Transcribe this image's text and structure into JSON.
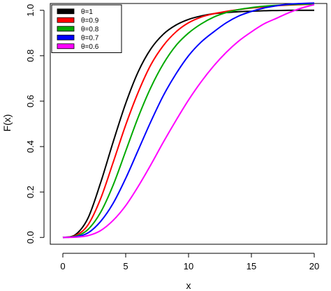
{
  "chart_data": {
    "type": "line",
    "title": "",
    "xlabel": "x",
    "ylabel": "F(x)",
    "xlim": [
      -1,
      21
    ],
    "ylim": [
      -0.03,
      1.03
    ],
    "xticks": [
      "0",
      "5",
      "10",
      "15",
      "20"
    ],
    "yticks": [
      "0.0",
      "0.2",
      "0.4",
      "0.6",
      "0.8",
      "1.0"
    ],
    "grid": false,
    "legend_position": "top-left",
    "x": [
      0,
      1,
      2,
      3,
      4,
      5,
      6,
      7,
      8,
      9,
      10,
      11,
      12,
      13,
      14,
      15,
      16,
      17,
      18,
      19,
      20
    ],
    "series": [
      {
        "name": "θ=1",
        "color": "#000000",
        "values": [
          0.0,
          0.012,
          0.085,
          0.24,
          0.42,
          0.59,
          0.73,
          0.83,
          0.895,
          0.935,
          0.96,
          0.975,
          0.985,
          0.99,
          0.994,
          0.996,
          0.998,
          0.999,
          1.0,
          1.0,
          1.0
        ]
      },
      {
        "name": "θ=0.9",
        "color": "#ff0000",
        "values": [
          0.0,
          0.008,
          0.055,
          0.17,
          0.33,
          0.495,
          0.64,
          0.76,
          0.845,
          0.905,
          0.945,
          0.97,
          0.985,
          0.995,
          1.003,
          1.01,
          1.015,
          1.02,
          1.023,
          1.025,
          1.027
        ]
      },
      {
        "name": "θ=0.8",
        "color": "#00aa00",
        "values": [
          0.0,
          0.005,
          0.035,
          0.11,
          0.23,
          0.38,
          0.53,
          0.66,
          0.765,
          0.845,
          0.9,
          0.94,
          0.97,
          0.99,
          1.003,
          1.012,
          1.018,
          1.022,
          1.025,
          1.027,
          1.028
        ]
      },
      {
        "name": "θ=0.7",
        "color": "#0000ff",
        "values": [
          0.0,
          0.003,
          0.02,
          0.07,
          0.15,
          0.26,
          0.385,
          0.51,
          0.625,
          0.72,
          0.8,
          0.86,
          0.905,
          0.945,
          0.975,
          0.995,
          1.01,
          1.02,
          1.027,
          1.03,
          1.032
        ]
      },
      {
        "name": "θ=0.6",
        "color": "#ff00ff",
        "values": [
          0.0,
          0.001,
          0.008,
          0.03,
          0.075,
          0.14,
          0.225,
          0.32,
          0.42,
          0.515,
          0.605,
          0.685,
          0.755,
          0.815,
          0.865,
          0.905,
          0.94,
          0.965,
          0.99,
          1.01,
          1.025
        ]
      }
    ]
  }
}
